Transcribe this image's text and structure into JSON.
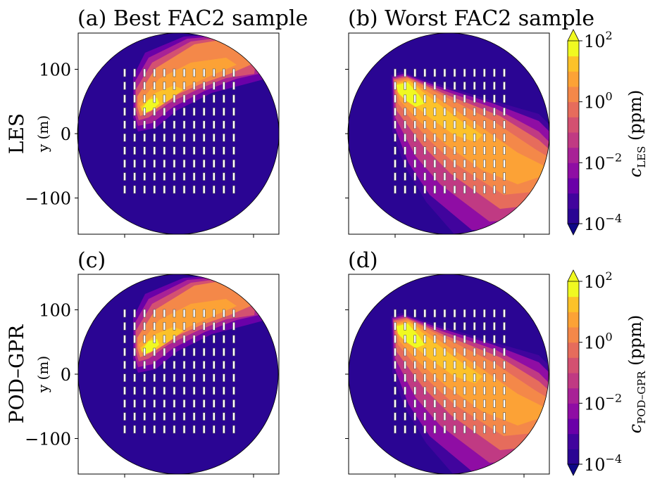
{
  "chart_data": [
    {
      "type": "heatmap",
      "panel": "a",
      "title": "(a) Best FAC2 sample",
      "row_label": "LES",
      "xlabel": "",
      "ylabel": "y (m)",
      "yticks": [
        "100",
        "0",
        "−100"
      ],
      "ytick_values": [
        100,
        0,
        -100
      ],
      "xticks_labeled": false,
      "ylim": [
        -155,
        155
      ],
      "domain_shape": "circle",
      "plume": {
        "source": "upper-left of array",
        "direction": "toward upper-right",
        "peak_level": "10^1.5-10^2 ppm",
        "spread": "narrow"
      }
    },
    {
      "type": "heatmap",
      "panel": "b",
      "title": "(b) Worst FAC2 sample",
      "row_label": "",
      "xlabel": "",
      "ylabel": "",
      "yticks_labeled": false,
      "xticks_labeled": false,
      "domain_shape": "circle",
      "plume": {
        "source": "upper-left of array",
        "direction": "toward lower-right",
        "peak_level": "10^1.5-10^2 ppm",
        "spread": "wide"
      }
    },
    {
      "type": "heatmap",
      "panel": "c",
      "title": "(c)",
      "row_label": "POD–GPR",
      "xlabel": "",
      "ylabel": "y (m)",
      "yticks": [
        "100",
        "0",
        "−100"
      ],
      "ytick_values": [
        100,
        0,
        -100
      ],
      "xticks_labeled": false,
      "ylim": [
        -155,
        155
      ],
      "domain_shape": "circle",
      "plume": {
        "source": "upper-left of array",
        "direction": "toward upper-right",
        "peak_level": "10^1.5-10^2 ppm",
        "spread": "narrow"
      }
    },
    {
      "type": "heatmap",
      "panel": "d",
      "title": "(d)",
      "row_label": "",
      "xlabel": "",
      "ylabel": "",
      "yticks_labeled": false,
      "xticks_labeled": false,
      "domain_shape": "circle",
      "plume": {
        "source": "upper-left of array",
        "direction": "toward lower-right",
        "peak_level": "10^1.5-10^2 ppm",
        "spread": "wide"
      }
    }
  ],
  "colorbars": [
    {
      "label_main": "c",
      "label_sub": "LES",
      "label_unit": " (ppm)",
      "scale": "log",
      "range_exp": [
        -4,
        2
      ],
      "n_levels": 12,
      "extend": "both",
      "ticks": [
        {
          "base": "10",
          "exp": "2",
          "value": 100
        },
        {
          "base": "10",
          "exp": "0",
          "value": 1
        },
        {
          "base": "10",
          "exp": "−2",
          "value": 0.01
        },
        {
          "base": "10",
          "exp": "−4",
          "value": 0.0001
        }
      ]
    },
    {
      "label_main": "c",
      "label_sub": "POD–GPR",
      "label_unit": " (ppm)",
      "scale": "log",
      "range_exp": [
        -4,
        2
      ],
      "n_levels": 12,
      "extend": "both",
      "ticks": [
        {
          "base": "10",
          "exp": "2",
          "value": 100
        },
        {
          "base": "10",
          "exp": "0",
          "value": 1
        },
        {
          "base": "10",
          "exp": "−2",
          "value": 0.01
        },
        {
          "base": "10",
          "exp": "−4",
          "value": 0.0001
        }
      ]
    }
  ],
  "buildings": {
    "columns": 12,
    "rows": 10
  },
  "colormap": {
    "name": "plasma",
    "under": "#0d0887",
    "over": "#f0f921",
    "levels": [
      "#2a0593",
      "#41049d",
      "#6a00a8",
      "#8f0da4",
      "#a82296",
      "#c03a83",
      "#d35171",
      "#e66c5c",
      "#f48849",
      "#fca236",
      "#fcc229",
      "#f0f921"
    ]
  }
}
